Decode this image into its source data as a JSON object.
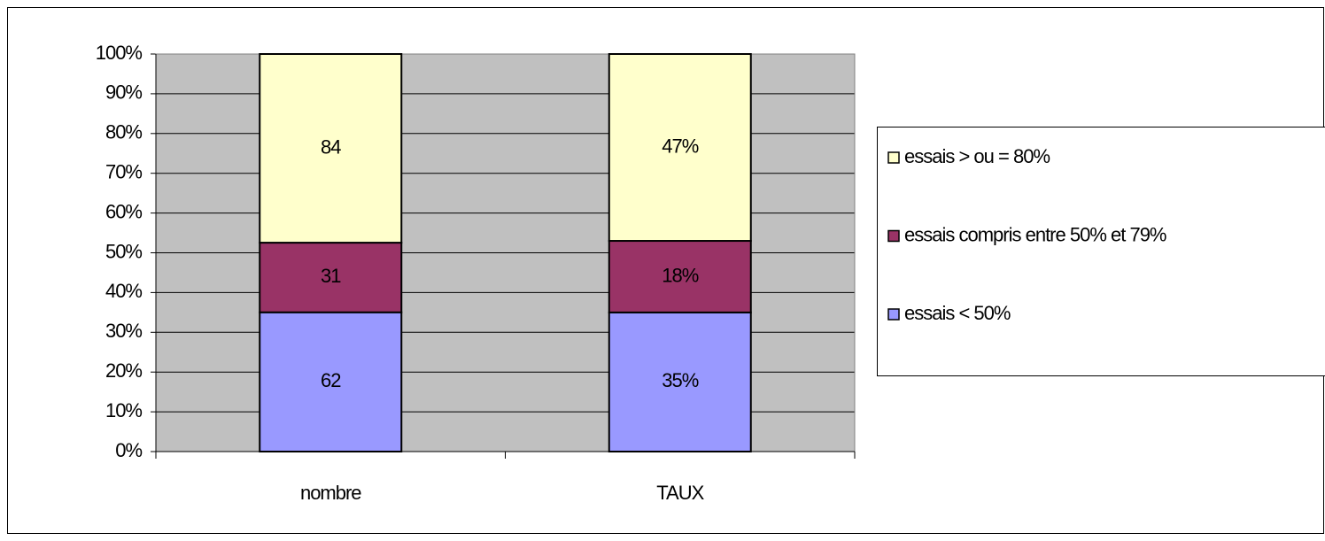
{
  "chart_data": {
    "type": "bar",
    "stacked": "percent",
    "categories": [
      "nombre",
      "TAUX"
    ],
    "series": [
      {
        "name": "essais < 50%",
        "color": "#9999ff",
        "values": [
          62,
          35
        ],
        "value_labels": [
          "62",
          "35%"
        ]
      },
      {
        "name": "essais compris entre 50% et 79%",
        "color": "#993366",
        "values": [
          31,
          18
        ],
        "value_labels": [
          "31",
          "18%"
        ]
      },
      {
        "name": "essais > ou = 80%",
        "color": "#ffffcc",
        "values": [
          84,
          47
        ],
        "value_labels": [
          "84",
          "47%"
        ]
      }
    ],
    "ylim": [
      0,
      100
    ],
    "yticks": [
      {
        "value": 0,
        "label": "0%"
      },
      {
        "value": 10,
        "label": "10%"
      },
      {
        "value": 20,
        "label": "20%"
      },
      {
        "value": 30,
        "label": "30%"
      },
      {
        "value": 40,
        "label": "40%"
      },
      {
        "value": 50,
        "label": "50%"
      },
      {
        "value": 60,
        "label": "60%"
      },
      {
        "value": 70,
        "label": "70%"
      },
      {
        "value": 80,
        "label": "80%"
      },
      {
        "value": 90,
        "label": "90%"
      },
      {
        "value": 100,
        "label": "100%"
      }
    ],
    "grid": true,
    "plot_background": "#c0c0c0",
    "legend": "right"
  }
}
